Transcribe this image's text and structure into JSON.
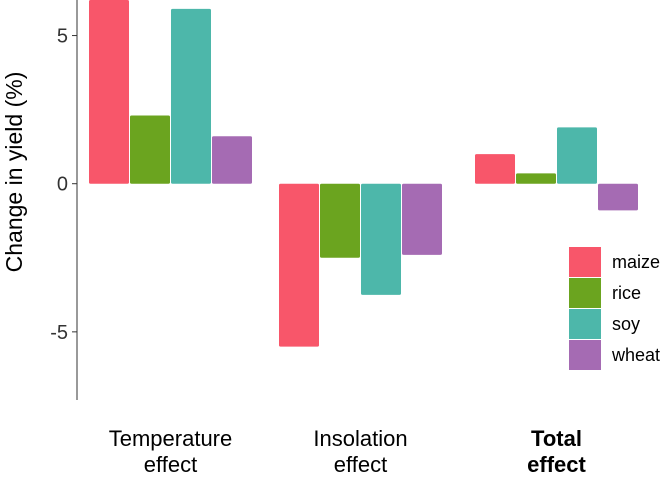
{
  "chart_data": {
    "type": "bar",
    "title": "",
    "xlabel": "",
    "ylabel": "Change in yield (%)",
    "ylim": [
      -7.3,
      6.2
    ],
    "yticks": [
      5,
      0,
      -5
    ],
    "ytick_labels": [
      "5",
      "0",
      "-5"
    ],
    "grid": false,
    "legend_position": "bottom-right",
    "categories": [
      "Temperature effect",
      "Insolation effect",
      "Total effect"
    ],
    "category_lines": [
      [
        "Temperature",
        "effect"
      ],
      [
        "Insolation",
        "effect"
      ],
      [
        "Total",
        "effect"
      ]
    ],
    "category_bold": [
      false,
      false,
      true
    ],
    "series": [
      {
        "name": "maize",
        "color": "#F8566A",
        "values": [
          6.2,
          -5.5,
          1.0
        ]
      },
      {
        "name": "rice",
        "color": "#6BA41F",
        "values": [
          2.3,
          -2.5,
          0.35
        ]
      },
      {
        "name": "soy",
        "color": "#4DB7AA",
        "values": [
          5.9,
          -3.75,
          1.9
        ]
      },
      {
        "name": "wheat",
        "color": "#A56BB3",
        "values": [
          1.6,
          -2.4,
          -0.9
        ]
      }
    ]
  }
}
